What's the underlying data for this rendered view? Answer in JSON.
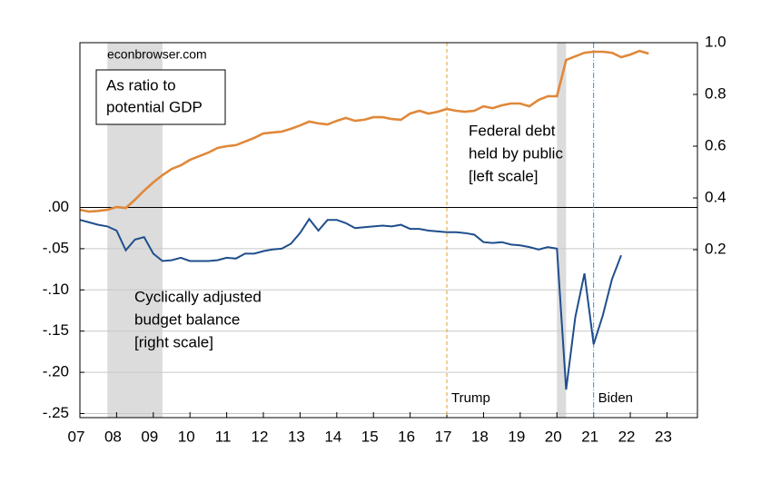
{
  "chart_data": {
    "type": "line",
    "source_label": "econbrowser.com",
    "note_lines": [
      "As ratio to",
      "potential GDP"
    ],
    "x": [
      2007,
      2007.25,
      2007.5,
      2007.75,
      2008,
      2008.25,
      2008.5,
      2008.75,
      2009,
      2009.25,
      2009.5,
      2009.75,
      2010,
      2010.25,
      2010.5,
      2010.75,
      2011,
      2011.25,
      2011.5,
      2011.75,
      2012,
      2012.25,
      2012.5,
      2012.75,
      2013,
      2013.25,
      2013.5,
      2013.75,
      2014,
      2014.25,
      2014.5,
      2014.75,
      2015,
      2015.25,
      2015.5,
      2015.75,
      2016,
      2016.25,
      2016.5,
      2016.75,
      2017,
      2017.25,
      2017.5,
      2017.75,
      2018,
      2018.25,
      2018.5,
      2018.75,
      2019,
      2019.25,
      2019.5,
      2019.75,
      2020,
      2020.25,
      2020.5,
      2020.75,
      2021,
      2021.25,
      2021.5,
      2021.75,
      2022,
      2022.25,
      2022.5
    ],
    "series": [
      {
        "name": [
          "Federal debt",
          "held by public",
          "[left scale]"
        ],
        "color": "#e0883a",
        "axis": "y2",
        "values": [
          0.354,
          0.347,
          0.35,
          0.354,
          0.365,
          0.361,
          0.393,
          0.428,
          0.46,
          0.488,
          0.512,
          0.526,
          0.547,
          0.561,
          0.575,
          0.593,
          0.6,
          0.604,
          0.618,
          0.632,
          0.649,
          0.653,
          0.656,
          0.667,
          0.68,
          0.695,
          0.688,
          0.684,
          0.698,
          0.709,
          0.698,
          0.702,
          0.712,
          0.712,
          0.705,
          0.702,
          0.726,
          0.737,
          0.726,
          0.733,
          0.744,
          0.737,
          0.733,
          0.737,
          0.754,
          0.747,
          0.758,
          0.765,
          0.765,
          0.754,
          0.779,
          0.793,
          0.793,
          0.933,
          0.947,
          0.961,
          0.965,
          0.965,
          0.961,
          0.944,
          0.954,
          0.968,
          0.958
        ]
      },
      {
        "name": [
          "Cyclically adjusted",
          "budget balance",
          "[right scale]"
        ],
        "color": "#1f4e8c",
        "axis": "y",
        "values": [
          -0.015,
          -0.018,
          -0.021,
          -0.023,
          -0.028,
          -0.052,
          -0.039,
          -0.036,
          -0.056,
          -0.065,
          -0.064,
          -0.061,
          -0.065,
          -0.065,
          -0.065,
          -0.064,
          -0.061,
          -0.062,
          -0.056,
          -0.056,
          -0.053,
          -0.051,
          -0.05,
          -0.044,
          -0.031,
          -0.014,
          -0.028,
          -0.015,
          -0.015,
          -0.019,
          -0.025,
          -0.024,
          -0.023,
          -0.022,
          -0.023,
          -0.021,
          -0.026,
          -0.026,
          -0.028,
          -0.029,
          -0.03,
          -0.03,
          -0.031,
          -0.033,
          -0.042,
          -0.043,
          -0.042,
          -0.045,
          -0.046,
          -0.048,
          -0.051,
          -0.048,
          -0.05,
          -0.221,
          -0.133,
          -0.08,
          -0.166,
          -0.131,
          -0.087,
          -0.058,
          null,
          null,
          null
        ]
      }
    ],
    "xlim": [
      2007,
      2023.83
    ],
    "xticks": [
      {
        "value": 2007,
        "label": "07"
      },
      {
        "value": 2008,
        "label": "08"
      },
      {
        "value": 2009,
        "label": "09"
      },
      {
        "value": 2010,
        "label": "10"
      },
      {
        "value": 2011,
        "label": "11"
      },
      {
        "value": 2012,
        "label": "12"
      },
      {
        "value": 2013,
        "label": "13"
      },
      {
        "value": 2014,
        "label": "14"
      },
      {
        "value": 2015,
        "label": "15"
      },
      {
        "value": 2016,
        "label": "16"
      },
      {
        "value": 2017,
        "label": "17"
      },
      {
        "value": 2018,
        "label": "18"
      },
      {
        "value": 2019,
        "label": "19"
      },
      {
        "value": 2020,
        "label": "20"
      },
      {
        "value": 2021,
        "label": "21"
      },
      {
        "value": 2022,
        "label": "22"
      },
      {
        "value": 2023,
        "label": "23"
      }
    ],
    "ylim": [
      -0.255,
      0.2
    ],
    "yticks": [
      {
        "value": 0,
        "label": ".00"
      },
      {
        "value": -0.05,
        "label": "-.05"
      },
      {
        "value": -0.1,
        "label": "-.10"
      },
      {
        "value": -0.15,
        "label": "-.15"
      },
      {
        "value": -0.2,
        "label": "-.20"
      },
      {
        "value": -0.25,
        "label": "-.25"
      }
    ],
    "y2lim": [
      -0.449,
      1.0
    ],
    "y2ticks": [
      0.2,
      0.4,
      0.6,
      0.8,
      {
        "value": 1.0,
        "label": "1.0"
      }
    ],
    "grid": true,
    "shaded_periods": [
      [
        2007.75,
        2009.25
      ],
      [
        2020.0,
        2020.25
      ]
    ],
    "vlines": [
      {
        "x": 2017,
        "label": "Trump",
        "color": "#e0a030",
        "dash": "4,3"
      },
      {
        "x": 2021,
        "label": "Biden",
        "color": "#3a8fd0",
        "dash": "6,2,1,2"
      }
    ]
  }
}
